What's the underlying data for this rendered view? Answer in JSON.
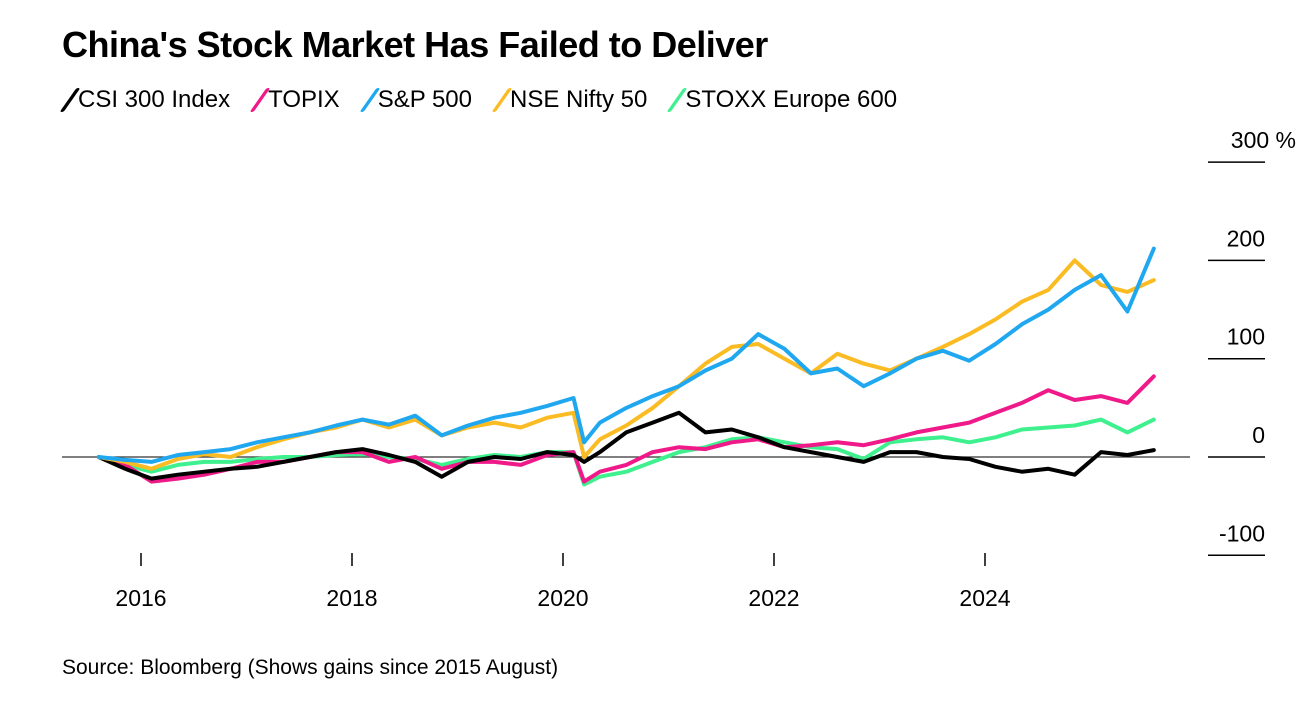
{
  "chart_data": {
    "type": "line",
    "title": "China's Stock Market Has Failed to Deliver",
    "source": "Source: Bloomberg (Shows gains since 2015 August)",
    "xlabel": "",
    "ylabel": "%",
    "ylim": [
      -100,
      300
    ],
    "xlim": [
      2015.5,
      2025.9
    ],
    "yticks": [
      {
        "value": 300,
        "label": "300 %"
      },
      {
        "value": 200,
        "label": "200"
      },
      {
        "value": 100,
        "label": "100"
      },
      {
        "value": 0,
        "label": "0"
      },
      {
        "value": -100,
        "label": "-100"
      }
    ],
    "xticks": [
      {
        "value": 2016,
        "label": "2016"
      },
      {
        "value": 2018,
        "label": "2018"
      },
      {
        "value": 2020,
        "label": "2020"
      },
      {
        "value": 2022,
        "label": "2022"
      },
      {
        "value": 2024,
        "label": "2024"
      }
    ],
    "legend_placement": "top-left",
    "x": [
      2015.6,
      2015.85,
      2016.1,
      2016.35,
      2016.6,
      2016.85,
      2017.1,
      2017.35,
      2017.6,
      2017.85,
      2018.1,
      2018.35,
      2018.6,
      2018.85,
      2019.1,
      2019.35,
      2019.6,
      2019.85,
      2020.1,
      2020.2,
      2020.35,
      2020.6,
      2020.85,
      2021.1,
      2021.35,
      2021.6,
      2021.85,
      2022.1,
      2022.35,
      2022.6,
      2022.85,
      2023.1,
      2023.35,
      2023.6,
      2023.85,
      2024.1,
      2024.35,
      2024.6,
      2024.85,
      2025.1,
      2025.35,
      2025.6
    ],
    "series": [
      {
        "name": "STOXX Europe 600",
        "color": "#3ff08e",
        "values": [
          0,
          -8,
          -15,
          -8,
          -5,
          -5,
          -2,
          0,
          0,
          2,
          3,
          0,
          -2,
          -8,
          -2,
          2,
          0,
          5,
          5,
          -28,
          -20,
          -15,
          -5,
          5,
          10,
          18,
          20,
          15,
          10,
          8,
          -2,
          15,
          18,
          20,
          15,
          20,
          28,
          30,
          32,
          38,
          25,
          38
        ]
      },
      {
        "name": "TOPIX",
        "color": "#f0198a",
        "values": [
          0,
          -8,
          -25,
          -22,
          -18,
          -12,
          -5,
          -5,
          0,
          5,
          5,
          -5,
          0,
          -12,
          -5,
          -5,
          -8,
          2,
          5,
          -25,
          -15,
          -8,
          5,
          10,
          8,
          15,
          18,
          10,
          12,
          15,
          12,
          18,
          25,
          30,
          35,
          45,
          55,
          68,
          58,
          62,
          55,
          82
        ]
      },
      {
        "name": "CSI 300 Index",
        "color": "#000000",
        "values": [
          0,
          -12,
          -22,
          -18,
          -15,
          -12,
          -10,
          -5,
          0,
          5,
          8,
          2,
          -5,
          -20,
          -5,
          0,
          -2,
          5,
          2,
          -5,
          5,
          25,
          35,
          45,
          25,
          28,
          20,
          10,
          5,
          0,
          -5,
          5,
          5,
          0,
          -2,
          -10,
          -15,
          -12,
          -18,
          5,
          2,
          7
        ]
      },
      {
        "name": "NSE Nifty 50",
        "color": "#fbbb23",
        "values": [
          0,
          -5,
          -12,
          -2,
          3,
          0,
          10,
          18,
          25,
          30,
          38,
          30,
          38,
          22,
          30,
          35,
          30,
          40,
          45,
          0,
          18,
          32,
          50,
          72,
          95,
          112,
          115,
          100,
          85,
          105,
          95,
          88,
          100,
          112,
          125,
          140,
          158,
          170,
          200,
          175,
          168,
          180
        ]
      },
      {
        "name": "S&P 500",
        "color": "#1fa7f0",
        "values": [
          0,
          -3,
          -5,
          2,
          5,
          8,
          15,
          20,
          25,
          32,
          38,
          33,
          42,
          22,
          32,
          40,
          45,
          52,
          60,
          15,
          35,
          50,
          62,
          72,
          88,
          100,
          125,
          110,
          85,
          90,
          72,
          85,
          100,
          108,
          98,
          115,
          135,
          150,
          170,
          185,
          148,
          212
        ]
      }
    ],
    "legend": [
      {
        "name": "CSI 300 Index",
        "color": "#000000"
      },
      {
        "name": "TOPIX",
        "color": "#f0198a"
      },
      {
        "name": "S&P 500",
        "color": "#1fa7f0"
      },
      {
        "name": "NSE Nifty 50",
        "color": "#fbbb23"
      },
      {
        "name": "STOXX Europe 600",
        "color": "#3ff08e"
      }
    ]
  }
}
